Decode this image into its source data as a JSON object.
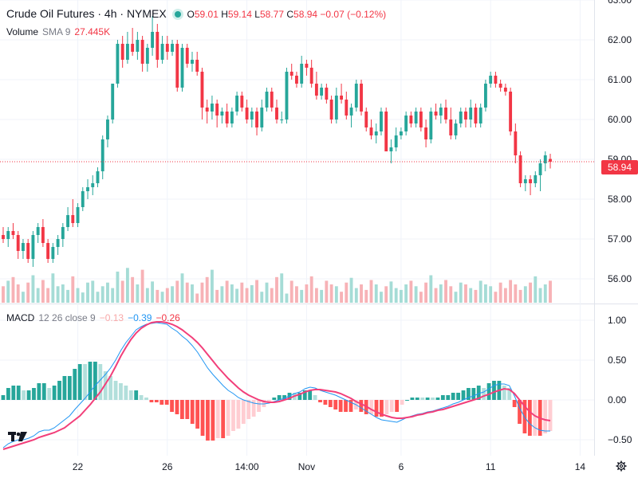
{
  "header": {
    "symbol": "Crude Oil Futures · 4h · NYMEX",
    "open_label": "O",
    "open": "59.01",
    "high_label": "H",
    "high": "59.14",
    "low_label": "L",
    "low": "58.77",
    "close_label": "C",
    "close": "58.94",
    "change": "−0.07 (−0.12%)"
  },
  "volume_legend": {
    "name": "Volume",
    "sma": "SMA 9",
    "value": "27.445K"
  },
  "macd_legend": {
    "name": "MACD",
    "params": "12 26 close 9",
    "hist": "−0.13",
    "macd": "−0.39",
    "signal": "−0.26"
  },
  "last_price_tag": "58.94",
  "colors": {
    "up": "#26a69a",
    "down": "#f23645",
    "macd": "#2196f3",
    "signal": "#f23f7a",
    "grid": "#f0f3fa"
  },
  "icons": [
    "status-dot-icon",
    "tradingview-logo-icon",
    "settings-gear-icon"
  ],
  "chart_data": [
    {
      "type": "candlestick",
      "title": "Crude Oil Futures · 4h · NYMEX",
      "ylim": [
        55.4,
        63.0
      ],
      "y_ticks": [
        "63.00",
        "62.00",
        "61.00",
        "60.00",
        "59.00",
        "58.00",
        "57.00",
        "56.00"
      ],
      "x_ticks": [
        "22",
        "26",
        "14:00",
        "Nov",
        "6",
        "11",
        "14"
      ],
      "candles": [
        [
          57.1,
          57.3,
          56.9,
          57.0
        ],
        [
          57.0,
          57.3,
          56.8,
          57.2
        ],
        [
          57.2,
          57.4,
          57.0,
          57.1
        ],
        [
          57.1,
          57.2,
          56.5,
          56.7
        ],
        [
          56.7,
          57.0,
          56.5,
          56.9
        ],
        [
          56.9,
          57.0,
          56.4,
          56.5
        ],
        [
          56.5,
          57.2,
          56.3,
          57.1
        ],
        [
          57.1,
          57.4,
          56.9,
          57.3
        ],
        [
          57.3,
          57.5,
          56.8,
          56.9
        ],
        [
          56.9,
          57.0,
          56.4,
          56.5
        ],
        [
          56.5,
          56.9,
          56.4,
          56.8
        ],
        [
          56.8,
          57.1,
          56.6,
          57.0
        ],
        [
          57.0,
          57.4,
          56.8,
          57.3
        ],
        [
          57.3,
          57.8,
          57.2,
          57.6
        ],
        [
          57.6,
          58.0,
          57.3,
          57.4
        ],
        [
          57.4,
          57.9,
          57.3,
          57.8
        ],
        [
          57.8,
          58.3,
          57.7,
          58.2
        ],
        [
          58.2,
          58.5,
          58.0,
          58.3
        ],
        [
          58.3,
          58.6,
          58.1,
          58.4
        ],
        [
          58.4,
          58.8,
          58.3,
          58.7
        ],
        [
          58.7,
          59.6,
          58.5,
          59.5
        ],
        [
          59.5,
          60.1,
          59.3,
          60.0
        ],
        [
          60.0,
          60.9,
          59.9,
          60.9
        ],
        [
          60.9,
          62.0,
          60.8,
          61.9
        ],
        [
          61.9,
          62.1,
          61.3,
          61.5
        ],
        [
          61.5,
          62.2,
          61.4,
          61.9
        ],
        [
          61.9,
          62.3,
          61.6,
          61.7
        ],
        [
          61.7,
          62.2,
          61.5,
          62.0
        ],
        [
          62.0,
          62.1,
          61.2,
          61.4
        ],
        [
          61.4,
          61.9,
          61.2,
          61.8
        ],
        [
          61.8,
          62.6,
          61.6,
          62.2
        ],
        [
          62.2,
          62.4,
          61.3,
          61.5
        ],
        [
          61.5,
          62.1,
          61.4,
          61.9
        ],
        [
          61.9,
          62.1,
          61.5,
          61.7
        ],
        [
          61.7,
          62.0,
          61.6,
          61.9
        ],
        [
          61.9,
          62.0,
          60.7,
          60.8
        ],
        [
          60.8,
          61.9,
          60.7,
          61.8
        ],
        [
          61.8,
          61.9,
          61.3,
          61.4
        ],
        [
          61.4,
          61.7,
          61.2,
          61.5
        ],
        [
          61.5,
          61.7,
          61.1,
          61.2
        ],
        [
          61.2,
          61.3,
          60.0,
          60.3
        ],
        [
          60.3,
          60.5,
          59.9,
          60.2
        ],
        [
          60.2,
          60.6,
          60.0,
          60.4
        ],
        [
          60.4,
          60.5,
          59.8,
          60.1
        ],
        [
          60.1,
          60.3,
          59.9,
          60.2
        ],
        [
          60.2,
          60.4,
          59.8,
          59.9
        ],
        [
          59.9,
          60.3,
          59.8,
          60.2
        ],
        [
          60.2,
          60.7,
          60.1,
          60.6
        ],
        [
          60.6,
          60.7,
          60.2,
          60.3
        ],
        [
          60.3,
          60.5,
          59.9,
          60.0
        ],
        [
          60.0,
          60.3,
          59.8,
          60.2
        ],
        [
          60.2,
          60.3,
          59.6,
          59.8
        ],
        [
          59.8,
          60.5,
          59.7,
          60.3
        ],
        [
          60.3,
          60.8,
          60.2,
          60.7
        ],
        [
          60.7,
          60.8,
          60.2,
          60.3
        ],
        [
          60.3,
          60.5,
          59.9,
          60.0
        ],
        [
          60.0,
          60.2,
          59.9,
          60.0
        ],
        [
          60.0,
          61.3,
          59.9,
          61.2
        ],
        [
          61.2,
          61.4,
          61.0,
          61.1
        ],
        [
          61.1,
          61.2,
          60.8,
          60.9
        ],
        [
          60.9,
          61.6,
          60.8,
          61.4
        ],
        [
          61.4,
          61.5,
          61.1,
          61.3
        ],
        [
          61.3,
          61.5,
          60.8,
          60.9
        ],
        [
          60.9,
          61.2,
          60.5,
          60.6
        ],
        [
          60.6,
          60.9,
          60.5,
          60.8
        ],
        [
          60.8,
          60.9,
          60.4,
          60.5
        ],
        [
          60.5,
          60.6,
          59.9,
          60.0
        ],
        [
          60.0,
          60.8,
          59.9,
          60.6
        ],
        [
          60.6,
          60.9,
          60.4,
          60.5
        ],
        [
          60.5,
          60.7,
          60.0,
          60.1
        ],
        [
          60.1,
          60.4,
          59.8,
          60.3
        ],
        [
          60.3,
          61.0,
          60.2,
          60.9
        ],
        [
          60.9,
          61.0,
          60.1,
          60.2
        ],
        [
          60.2,
          60.3,
          59.7,
          59.8
        ],
        [
          59.8,
          60.0,
          59.5,
          59.6
        ],
        [
          59.6,
          59.9,
          59.4,
          59.7
        ],
        [
          59.7,
          60.3,
          59.6,
          60.2
        ],
        [
          60.2,
          60.3,
          59.2,
          59.2
        ],
        [
          59.2,
          59.5,
          58.9,
          59.3
        ],
        [
          59.3,
          59.8,
          59.2,
          59.6
        ],
        [
          59.6,
          59.8,
          59.5,
          59.7
        ],
        [
          59.7,
          60.2,
          59.6,
          60.1
        ],
        [
          60.1,
          60.2,
          59.8,
          59.9
        ],
        [
          59.9,
          60.3,
          59.8,
          60.2
        ],
        [
          60.2,
          60.3,
          59.7,
          59.8
        ],
        [
          59.8,
          60.0,
          59.3,
          59.5
        ],
        [
          59.5,
          60.3,
          59.4,
          60.2
        ],
        [
          60.2,
          60.4,
          60.0,
          60.1
        ],
        [
          60.1,
          60.4,
          59.9,
          60.3
        ],
        [
          60.3,
          60.5,
          59.9,
          60.0
        ],
        [
          60.0,
          60.3,
          59.5,
          59.6
        ],
        [
          59.6,
          60.0,
          59.5,
          59.9
        ],
        [
          59.9,
          60.3,
          59.8,
          60.2
        ],
        [
          60.2,
          60.3,
          59.8,
          60.0
        ],
        [
          60.0,
          60.5,
          59.8,
          60.3
        ],
        [
          60.3,
          60.4,
          59.8,
          59.9
        ],
        [
          59.9,
          60.4,
          59.8,
          60.3
        ],
        [
          60.3,
          61.0,
          60.2,
          60.9
        ],
        [
          60.9,
          61.2,
          60.8,
          61.1
        ],
        [
          61.1,
          61.2,
          60.8,
          60.9
        ],
        [
          60.9,
          61.0,
          60.7,
          60.8
        ],
        [
          60.8,
          60.9,
          60.6,
          60.7
        ],
        [
          60.7,
          60.8,
          59.6,
          59.7
        ],
        [
          59.7,
          59.9,
          58.9,
          59.1
        ],
        [
          59.1,
          59.2,
          58.3,
          58.4
        ],
        [
          58.4,
          58.6,
          58.2,
          58.5
        ],
        [
          58.5,
          58.6,
          58.1,
          58.4
        ],
        [
          58.4,
          58.7,
          58.3,
          58.6
        ],
        [
          58.6,
          59.0,
          58.2,
          58.9
        ],
        [
          58.9,
          59.2,
          58.7,
          59.1
        ],
        [
          59.01,
          59.14,
          58.77,
          58.94
        ]
      ],
      "volume": [
        0.45,
        0.6,
        0.7,
        0.5,
        0.3,
        0.55,
        0.75,
        0.4,
        0.62,
        0.4,
        0.8,
        0.45,
        0.5,
        0.35,
        0.72,
        0.4,
        0.28,
        0.55,
        0.6,
        0.3,
        0.45,
        0.55,
        0.4,
        0.85,
        0.6,
        0.95,
        0.7,
        0.5,
        0.9,
        0.4,
        0.58,
        0.35,
        0.3,
        0.4,
        0.45,
        0.6,
        0.8,
        0.55,
        0.5,
        0.25,
        0.55,
        0.7,
        0.9,
        0.35,
        0.45,
        0.6,
        0.5,
        0.38,
        0.55,
        0.4,
        0.48,
        0.62,
        0.3,
        0.55,
        0.4,
        0.7,
        0.8,
        0.25,
        0.6,
        0.45,
        0.35,
        0.5,
        0.72,
        0.4,
        0.35,
        0.6,
        0.5,
        0.45,
        0.3,
        0.55,
        0.68,
        0.4,
        0.5,
        0.35,
        0.62,
        0.5,
        0.3,
        0.45,
        0.58,
        0.4,
        0.35,
        0.5,
        0.6,
        0.45,
        0.3,
        0.55,
        0.75,
        0.4,
        0.5,
        0.62,
        0.45,
        0.3,
        0.55,
        0.5,
        0.4,
        0.35,
        0.6,
        0.5,
        0.45,
        0.3,
        0.55,
        0.4,
        0.62,
        0.5,
        0.35,
        0.45,
        0.55,
        0.72,
        0.4,
        0.5,
        0.6,
        0.45,
        0.3,
        0.55,
        0.8,
        0.68,
        0.45,
        0.3,
        0.55,
        0.5
      ],
      "sma9": [
        57.0,
        57.05,
        57.0,
        56.98,
        56.95,
        56.9,
        56.92,
        56.95,
        56.9,
        56.85,
        56.85,
        56.9,
        56.95,
        57.05,
        57.1,
        57.2,
        57.3,
        57.45,
        57.6,
        57.8,
        58.05,
        58.35,
        58.7,
        59.1,
        59.5,
        59.9,
        60.3,
        60.6,
        60.85,
        61.05,
        61.25,
        61.4,
        61.55,
        61.65,
        61.7,
        61.65,
        61.6,
        61.55,
        61.5,
        61.35,
        61.15,
        60.95,
        60.8,
        60.65,
        60.5,
        60.4,
        60.3,
        60.25,
        60.2,
        60.15,
        60.1,
        60.1,
        60.12,
        60.15,
        60.15,
        60.2,
        60.35,
        60.5,
        60.6,
        60.75,
        60.85,
        60.9,
        60.9,
        60.85,
        60.8,
        60.7,
        60.6,
        60.55,
        60.5,
        60.45,
        60.4,
        60.3,
        60.2,
        60.05,
        59.95,
        59.85,
        59.7,
        59.6,
        59.6,
        59.6,
        59.65,
        59.75,
        59.8,
        59.85,
        59.85,
        59.9,
        59.95,
        60.0,
        60.0,
        60.0,
        60.0,
        60.0,
        60.05,
        60.05,
        60.1,
        60.25,
        60.4,
        60.5,
        60.6,
        60.6,
        60.4,
        60.1,
        59.8,
        59.5,
        59.3,
        59.15,
        59.0,
        58.9
      ]
    },
    {
      "type": "macd",
      "ylim": [
        -0.7,
        1.2
      ],
      "y_ticks": [
        "1.00",
        "0.50",
        "0.00",
        "−0.50"
      ],
      "macd_values": [
        -0.6,
        -0.55,
        -0.52,
        -0.5,
        -0.5,
        -0.48,
        -0.45,
        -0.4,
        -0.38,
        -0.38,
        -0.35,
        -0.3,
        -0.25,
        -0.2,
        -0.12,
        -0.05,
        0.02,
        0.1,
        0.18,
        0.25,
        0.32,
        0.4,
        0.5,
        0.62,
        0.72,
        0.8,
        0.88,
        0.92,
        0.95,
        0.96,
        0.97,
        0.96,
        0.95,
        0.9,
        0.86,
        0.8,
        0.75,
        0.68,
        0.6,
        0.5,
        0.4,
        0.32,
        0.25,
        0.18,
        0.12,
        0.08,
        0.03,
        0.0,
        -0.02,
        -0.04,
        -0.05,
        -0.05,
        -0.04,
        -0.02,
        0.0,
        0.02,
        0.05,
        0.08,
        0.1,
        0.14,
        0.16,
        0.15,
        0.12,
        0.1,
        0.08,
        0.06,
        0.03,
        0.0,
        -0.03,
        -0.06,
        -0.1,
        -0.14,
        -0.18,
        -0.22,
        -0.25,
        -0.26,
        -0.27,
        -0.28,
        -0.25,
        -0.22,
        -0.2,
        -0.18,
        -0.17,
        -0.15,
        -0.14,
        -0.12,
        -0.1,
        -0.08,
        -0.05,
        -0.03,
        0.0,
        0.03,
        0.05,
        0.08,
        0.1,
        0.14,
        0.18,
        0.2,
        0.2,
        0.18,
        0.05,
        -0.1,
        -0.22,
        -0.3,
        -0.35,
        -0.38,
        -0.39,
        -0.39
      ],
      "signal_values": [
        -0.62,
        -0.6,
        -0.58,
        -0.56,
        -0.54,
        -0.52,
        -0.5,
        -0.47,
        -0.45,
        -0.43,
        -0.41,
        -0.38,
        -0.35,
        -0.3,
        -0.25,
        -0.2,
        -0.13,
        -0.06,
        0.02,
        0.1,
        0.2,
        0.3,
        0.42,
        0.55,
        0.66,
        0.76,
        0.84,
        0.9,
        0.94,
        0.97,
        0.98,
        0.98,
        0.97,
        0.95,
        0.92,
        0.88,
        0.83,
        0.78,
        0.72,
        0.65,
        0.57,
        0.49,
        0.41,
        0.34,
        0.27,
        0.21,
        0.15,
        0.1,
        0.06,
        0.03,
        0.0,
        -0.02,
        -0.03,
        -0.03,
        -0.02,
        0.0,
        0.02,
        0.05,
        0.07,
        0.1,
        0.12,
        0.13,
        0.13,
        0.12,
        0.11,
        0.1,
        0.08,
        0.05,
        0.02,
        -0.02,
        -0.05,
        -0.08,
        -0.12,
        -0.15,
        -0.18,
        -0.2,
        -0.22,
        -0.23,
        -0.23,
        -0.22,
        -0.21,
        -0.19,
        -0.18,
        -0.16,
        -0.15,
        -0.13,
        -0.12,
        -0.1,
        -0.08,
        -0.06,
        -0.04,
        -0.02,
        0.0,
        0.02,
        0.05,
        0.07,
        0.1,
        0.12,
        0.14,
        0.13,
        0.08,
        0.0,
        -0.08,
        -0.15,
        -0.2,
        -0.23,
        -0.25,
        -0.26
      ]
    }
  ]
}
